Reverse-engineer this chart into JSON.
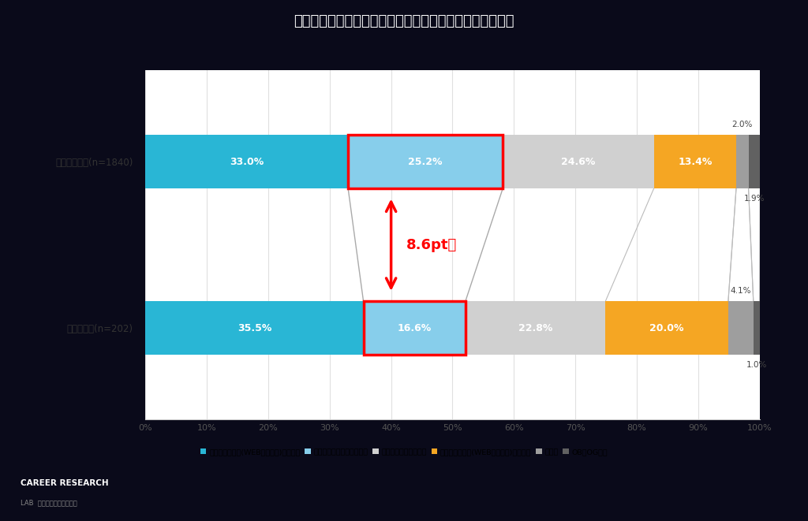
{
  "title": "キャリア形成活動・就職活動において最初に実施したこと",
  "title_bg_color": "#00c0e8",
  "bg_outer_color": "#0a0a1a",
  "bg_inner_color": "#1a1a2e",
  "chart_bg_color": "#f5f5f5",
  "white": "#ffffff",
  "rows": [
    {
      "label": "内々定保有者(n=1840)",
      "values": [
        33.0,
        25.2,
        24.6,
        13.4,
        2.0,
        1.9
      ],
      "label_texts": [
        "33.0%",
        "25.2%",
        "24.6%",
        "13.4%",
        "2.0%",
        "1.9%"
      ]
    },
    {
      "label": "未内々定者(n=202)",
      "values": [
        35.5,
        16.6,
        22.8,
        20.0,
        4.1,
        1.0
      ],
      "label_texts": [
        "35.5%",
        "16.6%",
        "22.8%",
        "20.0%",
        "4.1%",
        "1.0%"
      ]
    }
  ],
  "colors": [
    "#29b6d5",
    "#87ceeb",
    "#d0d0d0",
    "#f5a623",
    "#9e9e9e",
    "#616161"
  ],
  "legend_labels": [
    "合同企業説明会(WEB開催含む)への参加",
    "インターンシップへの参加",
    "就活イベントへの参加",
    "個別企業説明会(WEB開催含む)への参加",
    "その他",
    "OB・OG訪問"
  ],
  "highlight_col": 1,
  "highlight_diff_text": "8.6pt差"
}
